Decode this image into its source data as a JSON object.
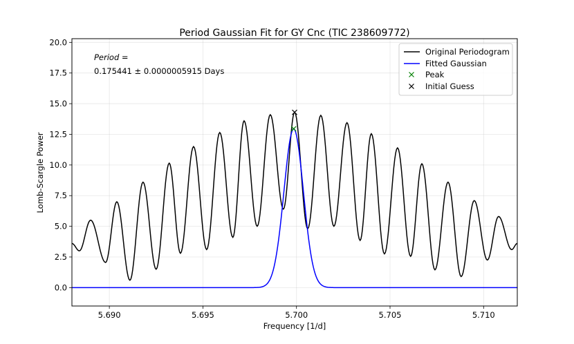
{
  "chart_data": {
    "type": "line",
    "title": "Period Gaussian Fit for GY Cnc (TIC 238609772)",
    "xlabel": "Frequency [1/d]",
    "ylabel": "Lomb-Scargle Power",
    "xlim": [
      5.688,
      5.7118
    ],
    "ylim": [
      -1.5,
      20.3
    ],
    "grid": true,
    "legend_position": "top-right",
    "xticks": [
      5.69,
      5.695,
      5.7,
      5.705,
      5.71
    ],
    "xtick_labels": [
      "5.690",
      "5.695",
      "5.700",
      "5.705",
      "5.710"
    ],
    "yticks": [
      0.0,
      2.5,
      5.0,
      7.5,
      10.0,
      12.5,
      15.0,
      17.5,
      20.0
    ],
    "ytick_labels": [
      "0.0",
      "2.5",
      "5.0",
      "7.5",
      "10.0",
      "12.5",
      "15.0",
      "17.5",
      "20.0"
    ],
    "annotation": {
      "label": "Period =",
      "value": "0.175441 ± 0.0000005915 Days"
    },
    "series": [
      {
        "name": "Original Periodogram",
        "kind": "line",
        "color": "#000000",
        "maxima": [
          {
            "x": 5.689,
            "y": 5.5
          },
          {
            "x": 5.6904,
            "y": 7.0
          },
          {
            "x": 5.6918,
            "y": 8.6
          },
          {
            "x": 5.6932,
            "y": 10.15
          },
          {
            "x": 5.6945,
            "y": 11.5
          },
          {
            "x": 5.6959,
            "y": 12.65
          },
          {
            "x": 5.6972,
            "y": 13.6
          },
          {
            "x": 5.6986,
            "y": 14.1
          },
          {
            "x": 5.6999,
            "y": 14.3
          },
          {
            "x": 5.7013,
            "y": 14.05
          },
          {
            "x": 5.7027,
            "y": 13.45
          },
          {
            "x": 5.704,
            "y": 12.55
          },
          {
            "x": 5.7054,
            "y": 11.4
          },
          {
            "x": 5.7067,
            "y": 10.1
          },
          {
            "x": 5.7081,
            "y": 8.6
          },
          {
            "x": 5.7095,
            "y": 7.1
          },
          {
            "x": 5.7108,
            "y": 5.8
          }
        ],
        "minima": [
          {
            "x": 5.688,
            "y": 3.6
          },
          {
            "x": 5.6884,
            "y": 3.0
          },
          {
            "x": 5.6898,
            "y": 2.05
          },
          {
            "x": 5.6911,
            "y": 0.6
          },
          {
            "x": 5.6925,
            "y": 1.5
          },
          {
            "x": 5.6938,
            "y": 2.8
          },
          {
            "x": 5.6952,
            "y": 3.1
          },
          {
            "x": 5.6966,
            "y": 4.1
          },
          {
            "x": 5.6979,
            "y": 5.0
          },
          {
            "x": 5.6993,
            "y": 6.4
          },
          {
            "x": 5.7006,
            "y": 4.8
          },
          {
            "x": 5.702,
            "y": 5.0
          },
          {
            "x": 5.7034,
            "y": 3.85
          },
          {
            "x": 5.7047,
            "y": 2.75
          },
          {
            "x": 5.7061,
            "y": 2.55
          },
          {
            "x": 5.7074,
            "y": 1.45
          },
          {
            "x": 5.7088,
            "y": 0.9
          },
          {
            "x": 5.7102,
            "y": 2.25
          },
          {
            "x": 5.7115,
            "y": 3.1
          },
          {
            "x": 5.7118,
            "y": 3.6
          }
        ]
      },
      {
        "name": "Fitted Gaussian",
        "kind": "line",
        "color": "#0000ff",
        "amplitude": 12.95,
        "center": 5.69985,
        "sigma": 0.00052,
        "offset": 0.0
      },
      {
        "name": "Peak",
        "kind": "marker",
        "marker": "x",
        "color": "#008000",
        "points": [
          {
            "x": 5.69985,
            "y": 12.95
          }
        ]
      },
      {
        "name": "Initial Guess",
        "kind": "marker",
        "marker": "x",
        "color": "#000000",
        "points": [
          {
            "x": 5.6999,
            "y": 14.3
          }
        ]
      }
    ]
  }
}
